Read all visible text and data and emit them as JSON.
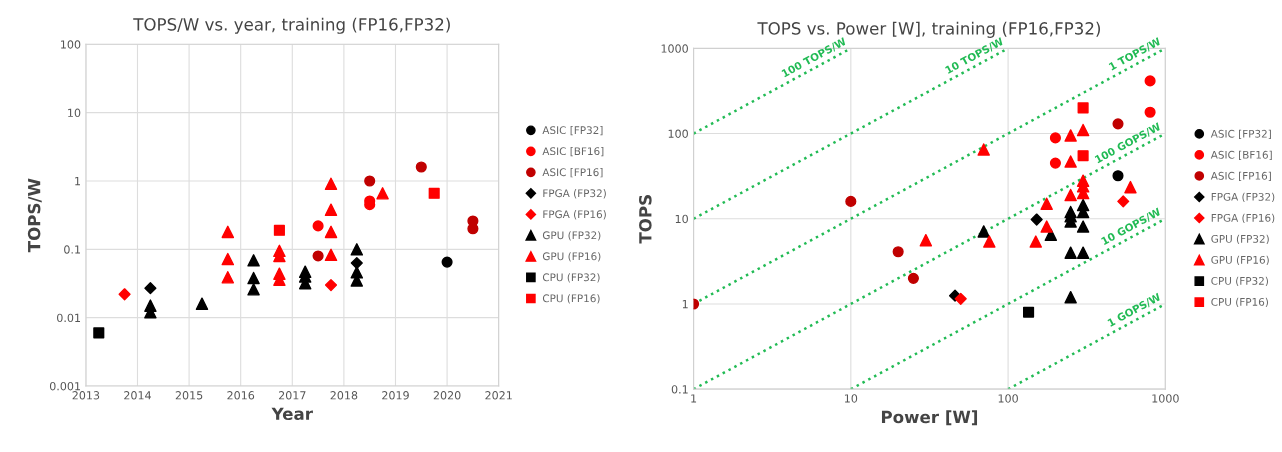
{
  "chart_data": [
    {
      "type": "scatter",
      "title": "TOPS/W vs. year, training (FP16,FP32)",
      "xlabel": "Year",
      "ylabel": "TOPS/W",
      "log": "y",
      "grid": true,
      "legend": "right",
      "xlim": [
        2013,
        2021
      ],
      "xticks": [
        2013,
        2014,
        2015,
        2016,
        2017,
        2018,
        2019,
        2020,
        2021
      ],
      "ylim": [
        0.001,
        100
      ],
      "yticks": [
        0.001,
        0.01,
        0.1,
        1,
        10,
        100
      ],
      "series": [
        {
          "name": "ASIC [FP32]",
          "color": "#000000",
          "marker": "circle",
          "x": [
            2020.0
          ],
          "values": [
            0.065
          ]
        },
        {
          "name": "ASIC [BF16]",
          "color": "#ff0000",
          "marker": "circle",
          "x": [
            2017.5,
            2018.5,
            2018.5
          ],
          "values": [
            0.22,
            0.51,
            0.45
          ]
        },
        {
          "name": "ASIC [FP16]",
          "color": "#c00000",
          "marker": "circle",
          "x": [
            2017.5,
            2018.5,
            2019.5,
            2020.5,
            2020.5
          ],
          "values": [
            0.08,
            1.0,
            1.6,
            0.26,
            0.2
          ]
        },
        {
          "name": "FPGA (FP32)",
          "color": "#000000",
          "marker": "diamond",
          "x": [
            2014.25,
            2018.25
          ],
          "values": [
            0.027,
            0.063
          ]
        },
        {
          "name": "FPGA (FP16)",
          "color": "#ff0000",
          "marker": "diamond",
          "x": [
            2013.75,
            2017.75
          ],
          "values": [
            0.022,
            0.03
          ]
        },
        {
          "name": "GPU (FP32)",
          "color": "#000000",
          "marker": "triangle",
          "x": [
            2014.25,
            2014.25,
            2015.25,
            2016.25,
            2016.25,
            2016.25,
            2017.25,
            2017.25,
            2017.25,
            2018.25,
            2018.25,
            2018.25
          ],
          "values": [
            0.015,
            0.012,
            0.016,
            0.069,
            0.038,
            0.026,
            0.047,
            0.04,
            0.032,
            0.1,
            0.046,
            0.035
          ]
        },
        {
          "name": "GPU (FP16)",
          "color": "#ff0000",
          "marker": "triangle",
          "x": [
            2015.75,
            2015.75,
            2015.75,
            2016.75,
            2016.75,
            2016.75,
            2016.75,
            2017.75,
            2017.75,
            2017.75,
            2017.75,
            2018.75
          ],
          "values": [
            0.18,
            0.072,
            0.039,
            0.095,
            0.08,
            0.044,
            0.036,
            0.91,
            0.38,
            0.18,
            0.083,
            0.66
          ]
        },
        {
          "name": "CPU (FP32)",
          "color": "#000000",
          "marker": "square",
          "x": [
            2013.25
          ],
          "values": [
            0.006
          ]
        },
        {
          "name": "CPU (FP16)",
          "color": "#ff0000",
          "marker": "square",
          "x": [
            2016.75,
            2019.75
          ],
          "values": [
            0.19,
            0.66
          ]
        }
      ]
    },
    {
      "type": "scatter",
      "title": "TOPS vs. Power [W], training (FP16,FP32)",
      "xlabel": "Power [W]",
      "ylabel": "TOPS",
      "log": "xy",
      "grid": true,
      "legend": "right",
      "xlim": [
        1,
        1000
      ],
      "xticks": [
        1,
        10,
        100,
        1000
      ],
      "ylim": [
        0.1,
        1000
      ],
      "yticks": [
        0.1,
        1,
        10,
        100,
        1000
      ],
      "series": [
        {
          "name": "100 TOPS/W",
          "type": "line",
          "color": "#22bb55",
          "line_style": "dotted",
          "marker": "none",
          "x": [
            1,
            10
          ],
          "values": [
            100,
            1000
          ]
        },
        {
          "name": "10 TOPS/W",
          "type": "line",
          "color": "#22bb55",
          "line_style": "dotted",
          "marker": "none",
          "x": [
            1,
            100
          ],
          "values": [
            10,
            1000
          ]
        },
        {
          "name": "1 TOPS/W",
          "type": "line",
          "color": "#22bb55",
          "line_style": "dotted",
          "marker": "none",
          "x": [
            1,
            1000
          ],
          "values": [
            1,
            1000
          ]
        },
        {
          "name": "100 GOPS/W",
          "type": "line",
          "color": "#22bb55",
          "line_style": "dotted",
          "marker": "none",
          "x": [
            1,
            1000
          ],
          "values": [
            0.1,
            100
          ]
        },
        {
          "name": "10 GOPS/W",
          "type": "line",
          "color": "#22bb55",
          "line_style": "dotted",
          "marker": "none",
          "x": [
            10,
            1000
          ],
          "values": [
            0.1,
            10
          ]
        },
        {
          "name": "1 GOPS/W",
          "type": "line",
          "color": "#22bb55",
          "line_style": "dotted",
          "marker": "none",
          "x": [
            100,
            1000
          ],
          "values": [
            0.1,
            1
          ]
        },
        {
          "name": "ASIC [FP32]",
          "color": "#000000",
          "marker": "circle",
          "x": [
            500
          ],
          "values": [
            32
          ]
        },
        {
          "name": "ASIC [BF16]",
          "color": "#ff0000",
          "marker": "circle",
          "x": [
            800,
            800,
            200,
            200
          ],
          "values": [
            415,
            178,
            89,
            45
          ]
        },
        {
          "name": "ASIC [FP16]",
          "color": "#c00000",
          "marker": "circle",
          "x": [
            1,
            10,
            20,
            25,
            500
          ],
          "values": [
            1,
            16,
            4.1,
            2.0,
            130
          ]
        },
        {
          "name": "FPGA (FP32)",
          "color": "#000000",
          "marker": "diamond",
          "x": [
            46,
            152
          ],
          "values": [
            1.25,
            9.8
          ]
        },
        {
          "name": "FPGA (FP16)",
          "color": "#ff0000",
          "marker": "diamond",
          "x": [
            50,
            540
          ],
          "values": [
            1.15,
            16
          ]
        },
        {
          "name": "GPU (FP32)",
          "color": "#000000",
          "marker": "triangle",
          "x": [
            70,
            76,
            150,
            187,
            250,
            250,
            250,
            300,
            300,
            300,
            250,
            300,
            250
          ],
          "values": [
            7.1,
            null,
            null,
            6.5,
            12,
            10.7,
            9.3,
            14.5,
            12,
            8.1,
            4.0,
            4.0,
            1.2
          ]
        },
        {
          "name": "GPU (FP16)",
          "color": "#ff0000",
          "marker": "triangle",
          "x": [
            70,
            30,
            76,
            150,
            176,
            176,
            250,
            250,
            250,
            300,
            300,
            300,
            300,
            600
          ],
          "values": [
            65,
            5.6,
            5.4,
            5.4,
            8.1,
            15,
            95,
            47,
            19,
            110,
            28,
            24,
            20,
            23.5
          ]
        },
        {
          "name": "CPU (FP32)",
          "color": "#000000",
          "marker": "square",
          "x": [
            135
          ],
          "values": [
            0.8
          ]
        },
        {
          "name": "CPU (FP16)",
          "color": "#ff0000",
          "marker": "square",
          "x": [
            300,
            300
          ],
          "values": [
            200,
            55
          ]
        }
      ]
    }
  ]
}
